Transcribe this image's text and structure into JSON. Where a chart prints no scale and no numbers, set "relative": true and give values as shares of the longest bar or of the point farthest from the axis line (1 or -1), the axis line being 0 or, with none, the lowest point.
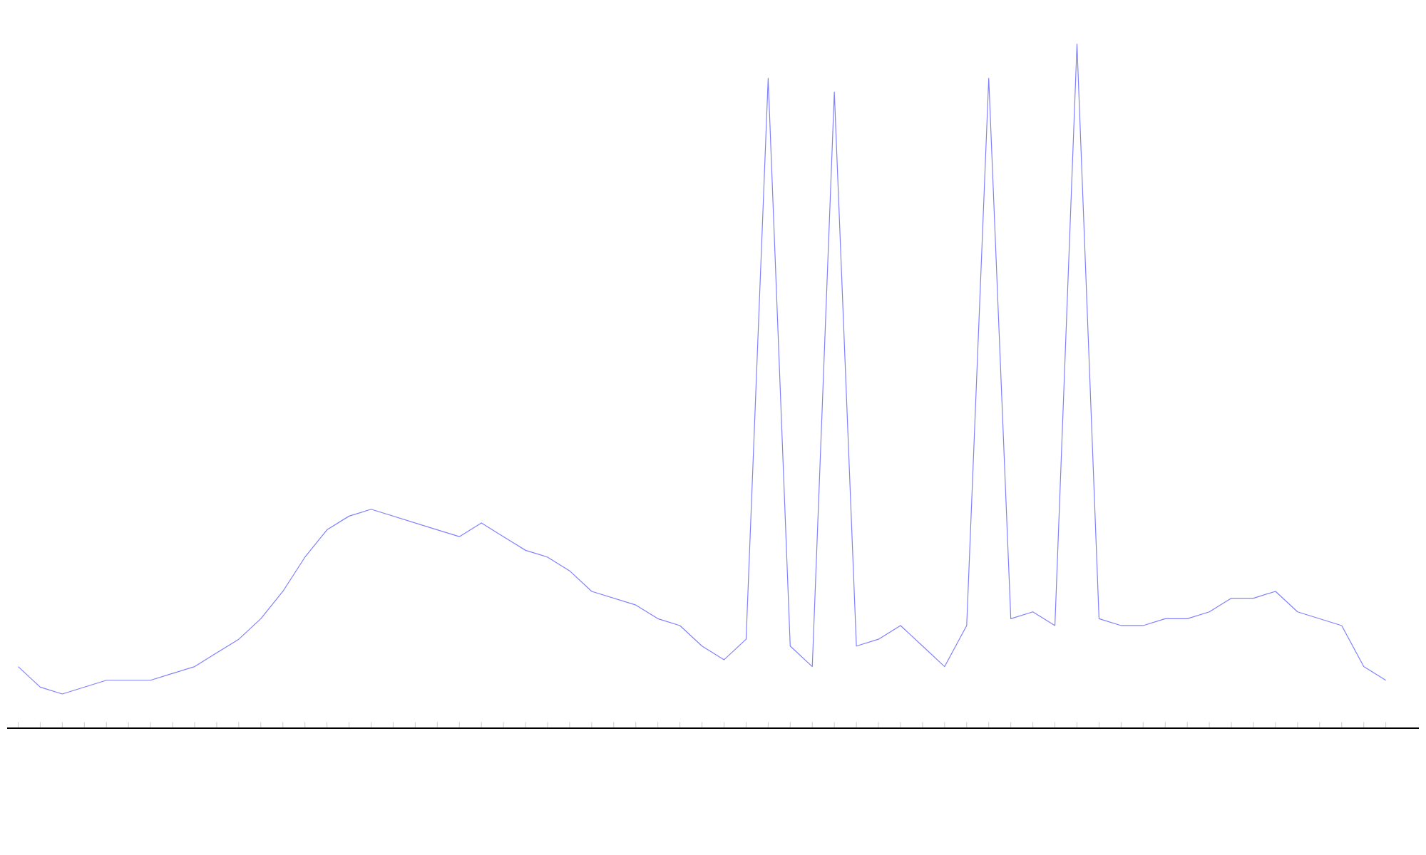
{
  "chart_data": {
    "type": "line",
    "relative": true,
    "categories": [
      null,
      null,
      null,
      null,
      null,
      null,
      null,
      null,
      null,
      null,
      null,
      null,
      null,
      null,
      null,
      null,
      null,
      null,
      null,
      null,
      null,
      null,
      null,
      null,
      null,
      null,
      null,
      null,
      null,
      null,
      null,
      null,
      null,
      null,
      null,
      null,
      null,
      null,
      null,
      null,
      null,
      null,
      null,
      null,
      null,
      null,
      null,
      null,
      null,
      null,
      null,
      null,
      null,
      null,
      null,
      null,
      null,
      null,
      null,
      null,
      null,
      null,
      null
    ],
    "series": [
      {
        "color": "#8080ff",
        "values": [
          0.09,
          0.06,
          0.05,
          0.06,
          0.07,
          0.07,
          0.07,
          0.08,
          0.09,
          0.11,
          0.13,
          0.16,
          0.2,
          0.25,
          0.29,
          0.31,
          0.32,
          0.31,
          0.3,
          0.29,
          0.28,
          0.3,
          0.28,
          0.26,
          0.25,
          0.23,
          0.2,
          0.19,
          0.18,
          0.16,
          0.15,
          0.12,
          0.1,
          0.13,
          0.95,
          0.12,
          0.09,
          0.93,
          0.12,
          0.13,
          0.15,
          0.12,
          0.09,
          0.15,
          0.95,
          0.16,
          0.17,
          0.15,
          1,
          0.16,
          0.15,
          0.15,
          0.16,
          0.16,
          0.17,
          0.19,
          0.19,
          0.2,
          0.17,
          0.16,
          0.15,
          0.09,
          0.07
        ]
      }
    ]
  }
}
